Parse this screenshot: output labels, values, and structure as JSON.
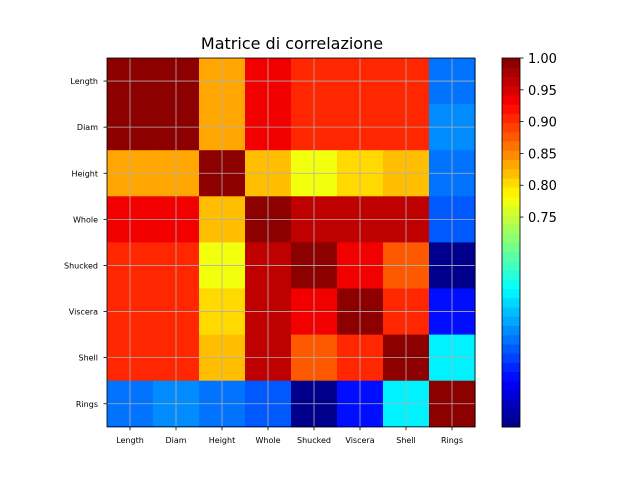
{
  "chart_data": {
    "type": "heatmap",
    "title": "Matrice di correlazione",
    "labels": [
      "Length",
      "Diam",
      "Height",
      "Whole",
      "Shucked",
      "Viscera",
      "Shell",
      "Rings"
    ],
    "matrix": [
      [
        1.0,
        0.99,
        0.83,
        0.93,
        0.9,
        0.9,
        0.9,
        0.56
      ],
      [
        0.99,
        1.0,
        0.83,
        0.93,
        0.9,
        0.9,
        0.91,
        0.57
      ],
      [
        0.83,
        0.83,
        1.0,
        0.82,
        0.77,
        0.8,
        0.82,
        0.56
      ],
      [
        0.93,
        0.93,
        0.82,
        1.0,
        0.97,
        0.97,
        0.96,
        0.54
      ],
      [
        0.9,
        0.9,
        0.77,
        0.97,
        1.0,
        0.93,
        0.88,
        0.42
      ],
      [
        0.9,
        0.9,
        0.8,
        0.97,
        0.93,
        1.0,
        0.91,
        0.5
      ],
      [
        0.9,
        0.91,
        0.82,
        0.96,
        0.88,
        0.91,
        1.0,
        0.63
      ],
      [
        0.56,
        0.57,
        0.56,
        0.54,
        0.42,
        0.5,
        0.63,
        1.0
      ]
    ],
    "colormap": "jet",
    "vmin": 0.42,
    "vmax": 1.0,
    "colorbar_ticks": [
      "0.75",
      "0.80",
      "0.85",
      "0.90",
      "0.95",
      "1.00"
    ],
    "grid": true,
    "colors": {
      "grid": "#b0b0b0",
      "axis": "#000000",
      "text": "#000000"
    }
  }
}
